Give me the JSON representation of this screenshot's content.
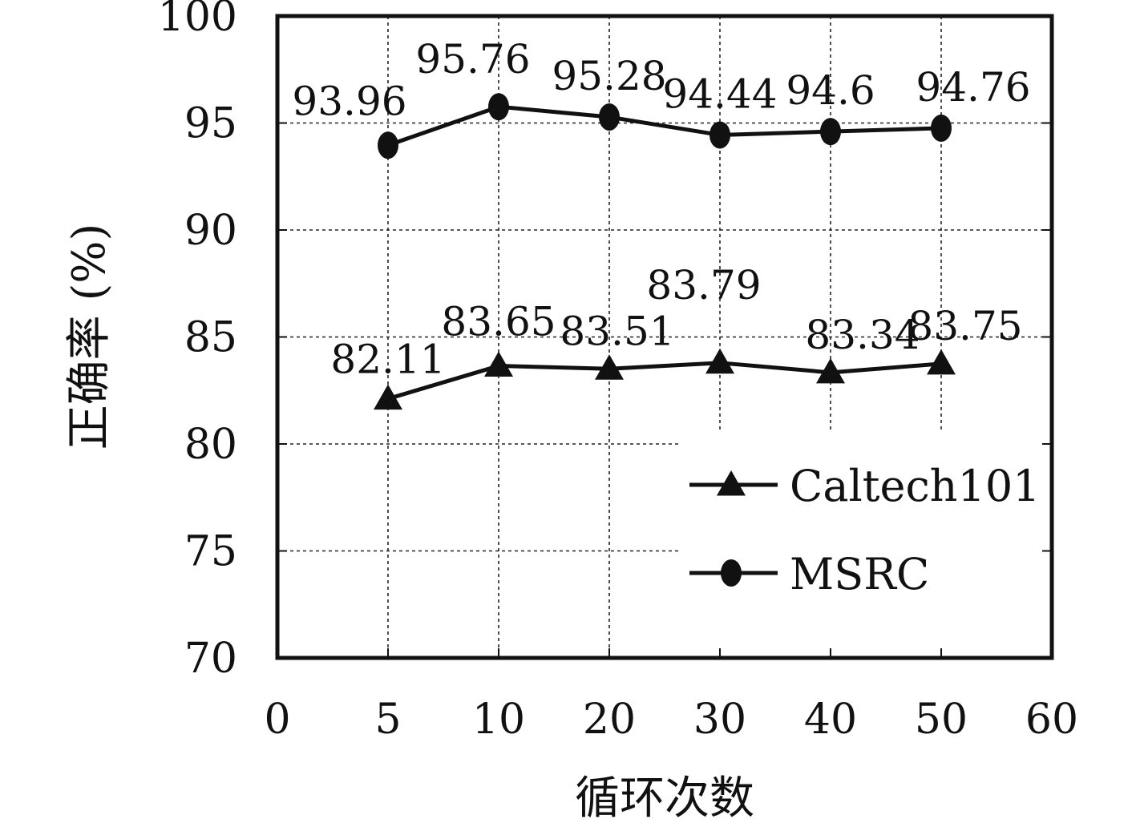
{
  "chart_data": {
    "type": "line",
    "xlabel": "循环次数",
    "ylabel": "正确率 (%)",
    "xlim": [
      0,
      60
    ],
    "ylim": [
      70,
      100
    ],
    "x_tick_labels": [
      "0",
      "5",
      "10",
      "20",
      "30",
      "40",
      "50",
      "60"
    ],
    "y_ticks": [
      70,
      75,
      80,
      85,
      90,
      95,
      100
    ],
    "y_tick_labels": [
      "70",
      "75",
      "80",
      "85",
      "90",
      "95",
      "100"
    ],
    "x": [
      "5",
      "10",
      "20",
      "30",
      "40",
      "50"
    ],
    "grid": true,
    "legend_position": "bottom-right",
    "series": [
      {
        "name": "Caltech101",
        "marker": "triangle",
        "color": "#111111",
        "values": [
          82.11,
          83.65,
          83.51,
          83.79,
          83.34,
          83.75
        ],
        "labels": [
          "82.11",
          "83.65",
          "83.51",
          "83.79",
          "83.34",
          "83.75"
        ]
      },
      {
        "name": "MSRC",
        "marker": "circle",
        "color": "#111111",
        "values": [
          93.96,
          95.76,
          95.28,
          94.44,
          94.6,
          94.76
        ],
        "labels": [
          "93.96",
          "95.76",
          "95.28",
          "94.44",
          "94.6",
          "94.76"
        ]
      }
    ]
  }
}
